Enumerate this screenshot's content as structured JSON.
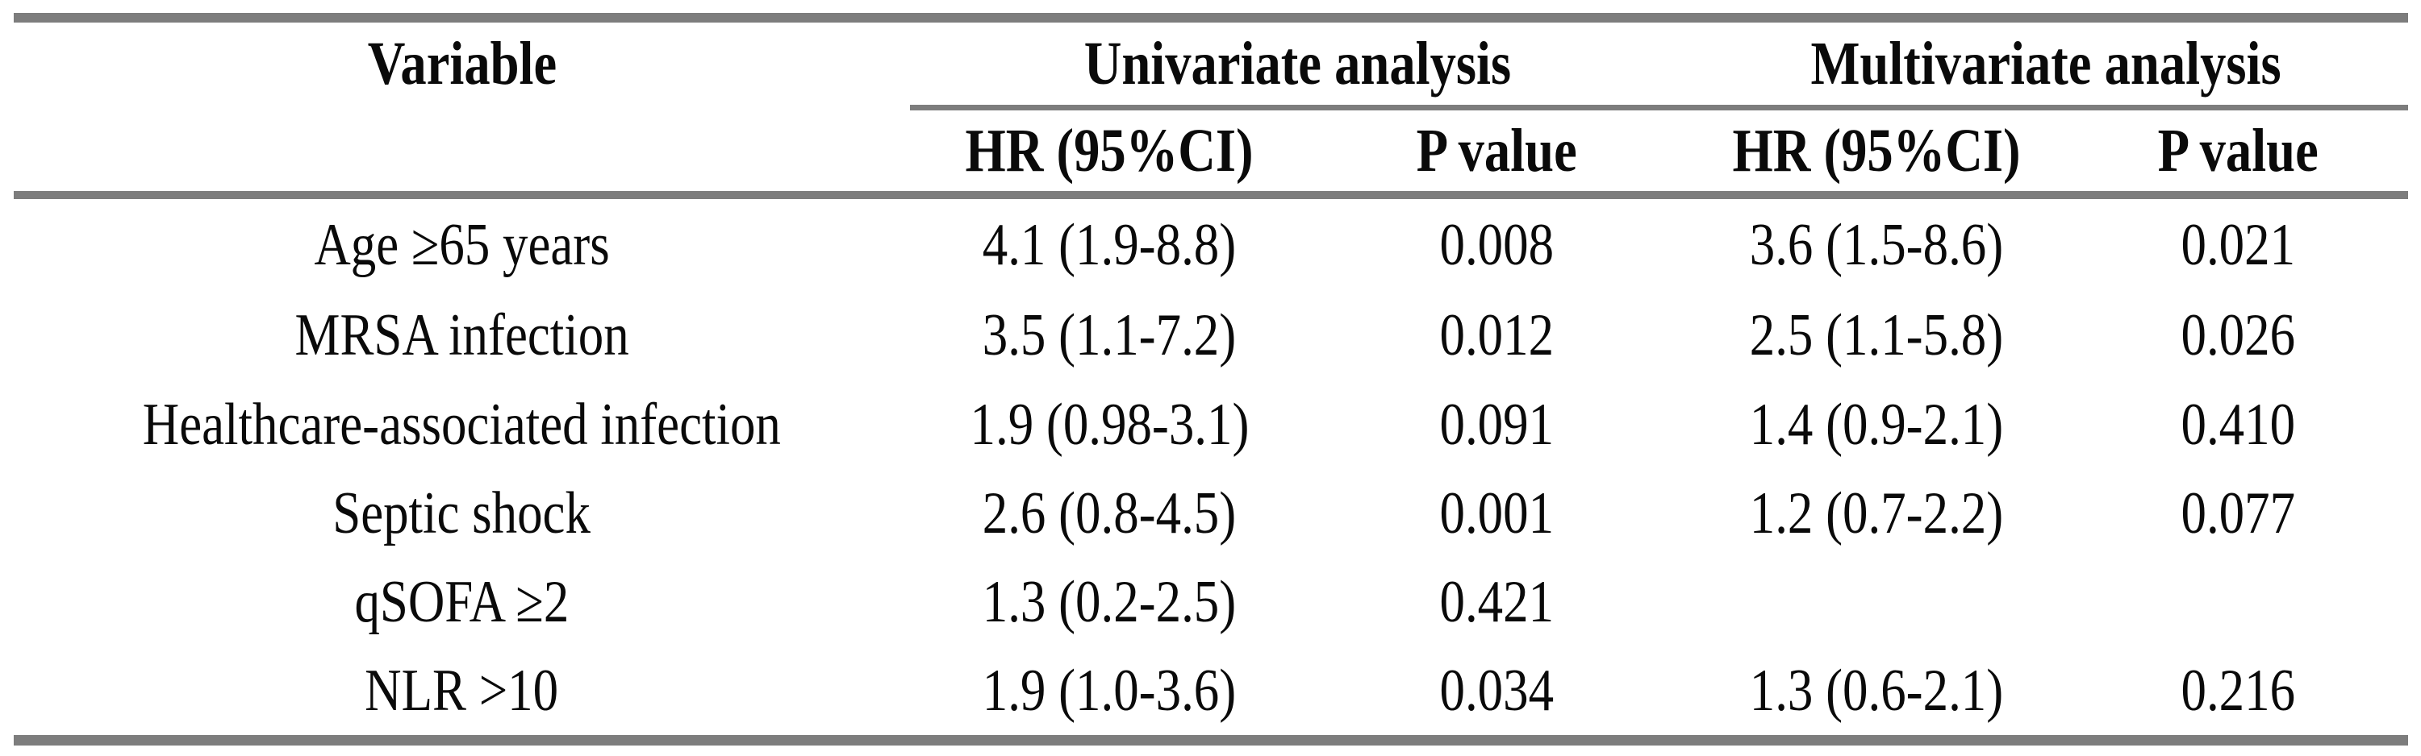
{
  "table": {
    "header": {
      "variable": "Variable",
      "univariate": "Univariate analysis",
      "multivariate": "Multivariate analysis",
      "hr_label": "HR (95%CI)",
      "p_label": "P value"
    },
    "rows": [
      {
        "variable": "Age ≥65 years",
        "uni_hr": "4.1 (1.9-8.8)",
        "uni_p": "0.008",
        "multi_hr": "3.6 (1.5-8.6)",
        "multi_p": "0.021"
      },
      {
        "variable": "MRSA infection",
        "uni_hr": "3.5 (1.1-7.2)",
        "uni_p": "0.012",
        "multi_hr": "2.5 (1.1-5.8)",
        "multi_p": "0.026"
      },
      {
        "variable": "Healthcare-associated infection",
        "uni_hr": "1.9 (0.98-3.1)",
        "uni_p": "0.091",
        "multi_hr": "1.4 (0.9-2.1)",
        "multi_p": "0.410"
      },
      {
        "variable": "Septic shock",
        "uni_hr": "2.6 (0.8-4.5)",
        "uni_p": "0.001",
        "multi_hr": "1.2 (0.7-2.2)",
        "multi_p": "0.077"
      },
      {
        "variable": "qSOFA ≥2",
        "uni_hr": "1.3 (0.2-2.5)",
        "uni_p": "0.421",
        "multi_hr": "",
        "multi_p": ""
      },
      {
        "variable": "NLR >10",
        "uni_hr": "1.9 (1.0-3.6)",
        "uni_p": "0.034",
        "multi_hr": "1.3 (0.6-2.1)",
        "multi_p": "0.216"
      }
    ]
  },
  "colors": {
    "rule_gray": "#7d7d7d",
    "text_black": "#0a0a0a",
    "background": "#ffffff"
  }
}
